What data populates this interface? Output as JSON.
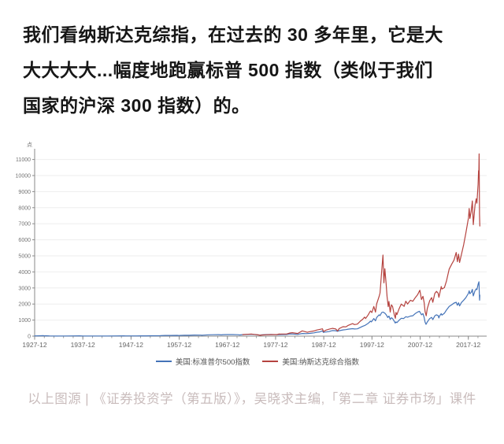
{
  "paragraph": {
    "lines": [
      "我们看纳斯达克综指，在过去的 30 多年里，它是大",
      "大大大大...幅度地跑赢标普 500 指数（类似于我们",
      "国家的沪深 300 指数）的。"
    ]
  },
  "caption": "以上图源 | 《证券投资学（第五版）》，吴晓求主编,「第二章 证券市场」课件",
  "colors": {
    "paragraph_text": "#161616",
    "caption_text": "#c9bcbc",
    "axis": "#8a8a8a",
    "tick_label": "#737373",
    "grid": "#eeeeee",
    "sp500_blue": "#4473b8",
    "nasdaq_red": "#b5433f"
  },
  "chart_data": {
    "type": "line",
    "title": "",
    "unit_label": "点",
    "xlabel": "",
    "ylabel": "",
    "x_range": [
      1927.92,
      2021.4
    ],
    "ylim": [
      0,
      11000
    ],
    "y_ticks": [
      0,
      1000,
      2000,
      3000,
      4000,
      5000,
      6000,
      7000,
      8000,
      9000,
      10000,
      11000
    ],
    "x_ticks": [
      {
        "year": 1927.92,
        "label": "1927-12"
      },
      {
        "year": 1937.92,
        "label": "1937-12"
      },
      {
        "year": 1947.92,
        "label": "1947-12"
      },
      {
        "year": 1957.92,
        "label": "1957-12"
      },
      {
        "year": 1967.92,
        "label": "1967-12"
      },
      {
        "year": 1977.92,
        "label": "1977-12"
      },
      {
        "year": 1987.92,
        "label": "1987-12"
      },
      {
        "year": 1997.92,
        "label": "1997-12"
      },
      {
        "year": 2007.92,
        "label": "2007-12"
      },
      {
        "year": 2017.92,
        "label": "2017-12"
      }
    ],
    "minor_tick_step_years": 2,
    "grid": "horizontal",
    "legend_position": "bottom-center",
    "series": [
      {
        "name": "美国:标准普尔500指数",
        "color": "#4473b8",
        "points": [
          [
            1927.92,
            17
          ],
          [
            1929.2,
            26
          ],
          [
            1929.7,
            31
          ],
          [
            1929.9,
            21
          ],
          [
            1930.3,
            25
          ],
          [
            1931,
            14
          ],
          [
            1932.5,
            5
          ],
          [
            1933,
            10
          ],
          [
            1934,
            9
          ],
          [
            1936,
            17
          ],
          [
            1937.2,
            18
          ],
          [
            1938,
            9
          ],
          [
            1939,
            12
          ],
          [
            1940,
            10
          ],
          [
            1942,
            8
          ],
          [
            1943,
            11
          ],
          [
            1945,
            15
          ],
          [
            1946.4,
            19
          ],
          [
            1946.8,
            15
          ],
          [
            1948,
            15
          ],
          [
            1949,
            14
          ],
          [
            1950,
            18
          ],
          [
            1951,
            22
          ],
          [
            1952,
            24
          ],
          [
            1953,
            24
          ],
          [
            1954,
            30
          ],
          [
            1955,
            42
          ],
          [
            1956,
            46
          ],
          [
            1957.5,
            49
          ],
          [
            1957.9,
            40
          ],
          [
            1958,
            44
          ],
          [
            1959,
            58
          ],
          [
            1960,
            56
          ],
          [
            1961,
            68
          ],
          [
            1962.4,
            65
          ],
          [
            1962.6,
            54
          ],
          [
            1963,
            65
          ],
          [
            1964,
            81
          ],
          [
            1965,
            89
          ],
          [
            1966.1,
            93
          ],
          [
            1966.7,
            77
          ],
          [
            1967,
            92
          ],
          [
            1968,
            100
          ],
          [
            1969,
            97
          ],
          [
            1970.1,
            86
          ],
          [
            1970.5,
            72
          ],
          [
            1971,
            95
          ],
          [
            1972,
            109
          ],
          [
            1972.9,
            118
          ],
          [
            1973.5,
            104
          ],
          [
            1974,
            94
          ],
          [
            1974.7,
            63
          ],
          [
            1975,
            77
          ],
          [
            1976,
            100
          ],
          [
            1977,
            102
          ],
          [
            1978.2,
            89
          ],
          [
            1979,
            100
          ],
          [
            1980.2,
            102
          ],
          [
            1980.9,
            135
          ],
          [
            1981.5,
            131
          ],
          [
            1982.5,
            110
          ],
          [
            1983,
            140
          ],
          [
            1983.5,
            165
          ],
          [
            1984.3,
            157
          ],
          [
            1985,
            172
          ],
          [
            1985.9,
            207
          ],
          [
            1986.5,
            245
          ],
          [
            1987.1,
            264
          ],
          [
            1987.65,
            329
          ],
          [
            1987.85,
            230
          ],
          [
            1987.95,
            247
          ],
          [
            1988.4,
            258
          ],
          [
            1989,
            285
          ],
          [
            1989.7,
            348
          ],
          [
            1990.4,
            340
          ],
          [
            1990.75,
            300
          ],
          [
            1991.1,
            340
          ],
          [
            1991.9,
            388
          ],
          [
            1992.5,
            408
          ],
          [
            1993,
            435
          ],
          [
            1993.9,
            466
          ],
          [
            1994.3,
            445
          ],
          [
            1994.9,
            455
          ],
          [
            1995.5,
            545
          ],
          [
            1996,
            616
          ],
          [
            1996.5,
            670
          ],
          [
            1997.1,
            790
          ],
          [
            1997.6,
            930
          ],
          [
            1997.8,
            885
          ],
          [
            1998.3,
            1100
          ],
          [
            1998.65,
            957
          ],
          [
            1998.9,
            1160
          ],
          [
            1999.4,
            1330
          ],
          [
            1999.6,
            1280
          ],
          [
            1999.95,
            1469
          ],
          [
            2000.2,
            1499
          ],
          [
            2000.6,
            1430
          ],
          [
            2000.9,
            1320
          ],
          [
            2001.2,
            1160
          ],
          [
            2001.45,
            1250
          ],
          [
            2001.7,
            1040
          ],
          [
            2001.95,
            1148
          ],
          [
            2002.2,
            1100
          ],
          [
            2002.55,
            920
          ],
          [
            2002.75,
            815
          ],
          [
            2002.9,
            885
          ],
          [
            2003.1,
            841
          ],
          [
            2003.5,
            975
          ],
          [
            2004,
            1112
          ],
          [
            2004.5,
            1100
          ],
          [
            2004.95,
            1212
          ],
          [
            2005.3,
            1180
          ],
          [
            2005.9,
            1249
          ],
          [
            2006.4,
            1270
          ],
          [
            2006.95,
            1418
          ],
          [
            2007.4,
            1500
          ],
          [
            2007.75,
            1549
          ],
          [
            2007.95,
            1468
          ],
          [
            2008.2,
            1330
          ],
          [
            2008.5,
            1400
          ],
          [
            2008.75,
            1165
          ],
          [
            2008.95,
            870
          ],
          [
            2009.15,
            735
          ],
          [
            2009.4,
            880
          ],
          [
            2009.9,
            1095
          ],
          [
            2010.3,
            1170
          ],
          [
            2010.55,
            1030
          ],
          [
            2010.95,
            1258
          ],
          [
            2011.3,
            1330
          ],
          [
            2011.65,
            1285
          ],
          [
            2011.8,
            1131
          ],
          [
            2011.95,
            1258
          ],
          [
            2012.3,
            1400
          ],
          [
            2012.45,
            1310
          ],
          [
            2012.95,
            1426
          ],
          [
            2013.4,
            1630
          ],
          [
            2013.95,
            1848
          ],
          [
            2014.5,
            1960
          ],
          [
            2014.95,
            2059
          ],
          [
            2015.4,
            2110
          ],
          [
            2015.65,
            1920
          ],
          [
            2015.9,
            2080
          ],
          [
            2016.1,
            1880
          ],
          [
            2016.5,
            2100
          ],
          [
            2016.95,
            2239
          ],
          [
            2017.4,
            2390
          ],
          [
            2017.95,
            2674
          ],
          [
            2018.1,
            2823
          ],
          [
            2018.25,
            2640
          ],
          [
            2018.5,
            2720
          ],
          [
            2018.75,
            2914
          ],
          [
            2018.95,
            2506
          ],
          [
            2019.3,
            2834
          ],
          [
            2019.55,
            2942
          ],
          [
            2019.7,
            2890
          ],
          [
            2019.95,
            3231
          ],
          [
            2020.12,
            3386
          ],
          [
            2020.2,
            2600
          ],
          [
            2020.26,
            2237
          ],
          [
            2020.3,
            2550
          ]
        ]
      },
      {
        "name": "美国:纳斯达克综合指数",
        "color": "#b5433f",
        "points": [
          [
            1971.1,
            100
          ],
          [
            1971.9,
            114
          ],
          [
            1972.9,
            134
          ],
          [
            1973.5,
            109
          ],
          [
            1974,
            92
          ],
          [
            1974.75,
            56
          ],
          [
            1975,
            70
          ],
          [
            1976,
            90
          ],
          [
            1977,
            97
          ],
          [
            1978.2,
            100
          ],
          [
            1978.7,
            139
          ],
          [
            1978.9,
            118
          ],
          [
            1979,
            130
          ],
          [
            1980.2,
            130
          ],
          [
            1980.9,
            195
          ],
          [
            1981.4,
            214
          ],
          [
            1982.5,
            165
          ],
          [
            1983.45,
            329
          ],
          [
            1984.5,
            240
          ],
          [
            1985,
            280
          ],
          [
            1985.9,
            325
          ],
          [
            1986.5,
            380
          ],
          [
            1987.1,
            420
          ],
          [
            1987.65,
            455
          ],
          [
            1987.85,
            290
          ],
          [
            1988.4,
            375
          ],
          [
            1989,
            430
          ],
          [
            1989.75,
            485
          ],
          [
            1990.4,
            450
          ],
          [
            1990.8,
            325
          ],
          [
            1991.1,
            470
          ],
          [
            1991.9,
            586
          ],
          [
            1992.5,
            580
          ],
          [
            1993,
            670
          ],
          [
            1993.9,
            777
          ],
          [
            1994.3,
            720
          ],
          [
            1994.9,
            752
          ],
          [
            1995.5,
            930
          ],
          [
            1996,
            1052
          ],
          [
            1996.4,
            1185
          ],
          [
            1996.6,
            1100
          ],
          [
            1997.1,
            1310
          ],
          [
            1997.6,
            1570
          ],
          [
            1997.9,
            1470
          ],
          [
            1998.3,
            1850
          ],
          [
            1998.65,
            1499
          ],
          [
            1998.9,
            2010
          ],
          [
            1999.4,
            2470
          ],
          [
            1999.6,
            2690
          ],
          [
            1999.95,
            4069
          ],
          [
            2000.2,
            5048
          ],
          [
            2000.4,
            3321
          ],
          [
            2000.6,
            4200
          ],
          [
            2000.85,
            3278
          ],
          [
            2001.05,
            2470
          ],
          [
            2001.3,
            1840
          ],
          [
            2001.45,
            2160
          ],
          [
            2001.7,
            1498
          ],
          [
            2001.95,
            1950
          ],
          [
            2002.2,
            1845
          ],
          [
            2002.55,
            1330
          ],
          [
            2002.78,
            1114
          ],
          [
            2002.9,
            1480
          ],
          [
            2003.1,
            1337
          ],
          [
            2003.5,
            1670
          ],
          [
            2004,
            2000
          ],
          [
            2004.6,
            1860
          ],
          [
            2004.95,
            2175
          ],
          [
            2005.3,
            1999
          ],
          [
            2005.9,
            2233
          ],
          [
            2006.4,
            2170
          ],
          [
            2006.95,
            2415
          ],
          [
            2007.4,
            2580
          ],
          [
            2007.85,
            2859
          ],
          [
            2007.98,
            2650
          ],
          [
            2008.2,
            2280
          ],
          [
            2008.5,
            2480
          ],
          [
            2008.75,
            2090
          ],
          [
            2008.95,
            1530
          ],
          [
            2009.18,
            1269
          ],
          [
            2009.4,
            1720
          ],
          [
            2009.9,
            2200
          ],
          [
            2010.3,
            2400
          ],
          [
            2010.55,
            2110
          ],
          [
            2010.95,
            2653
          ],
          [
            2011.3,
            2790
          ],
          [
            2011.65,
            2680
          ],
          [
            2011.8,
            2415
          ],
          [
            2011.95,
            2605
          ],
          [
            2012.3,
            3090
          ],
          [
            2012.45,
            2935
          ],
          [
            2012.95,
            3020
          ],
          [
            2013.4,
            3440
          ],
          [
            2013.95,
            4177
          ],
          [
            2014.5,
            4500
          ],
          [
            2014.95,
            4736
          ],
          [
            2015.4,
            5210
          ],
          [
            2015.65,
            4636
          ],
          [
            2015.9,
            5110
          ],
          [
            2016.1,
            4590
          ],
          [
            2016.5,
            5100
          ],
          [
            2016.95,
            5700
          ],
          [
            2017.4,
            6400
          ],
          [
            2017.95,
            7370
          ],
          [
            2018.1,
            7950
          ],
          [
            2018.25,
            7330
          ],
          [
            2018.5,
            7750
          ],
          [
            2018.75,
            8420
          ],
          [
            2018.95,
            6940
          ],
          [
            2019.3,
            8160
          ],
          [
            2019.55,
            8550
          ],
          [
            2019.7,
            8280
          ],
          [
            2019.95,
            9450
          ],
          [
            2020.05,
            10300
          ],
          [
            2020.1,
            9900
          ],
          [
            2020.16,
            11350
          ],
          [
            2020.24,
            7600
          ],
          [
            2020.3,
            6860
          ]
        ]
      }
    ]
  }
}
